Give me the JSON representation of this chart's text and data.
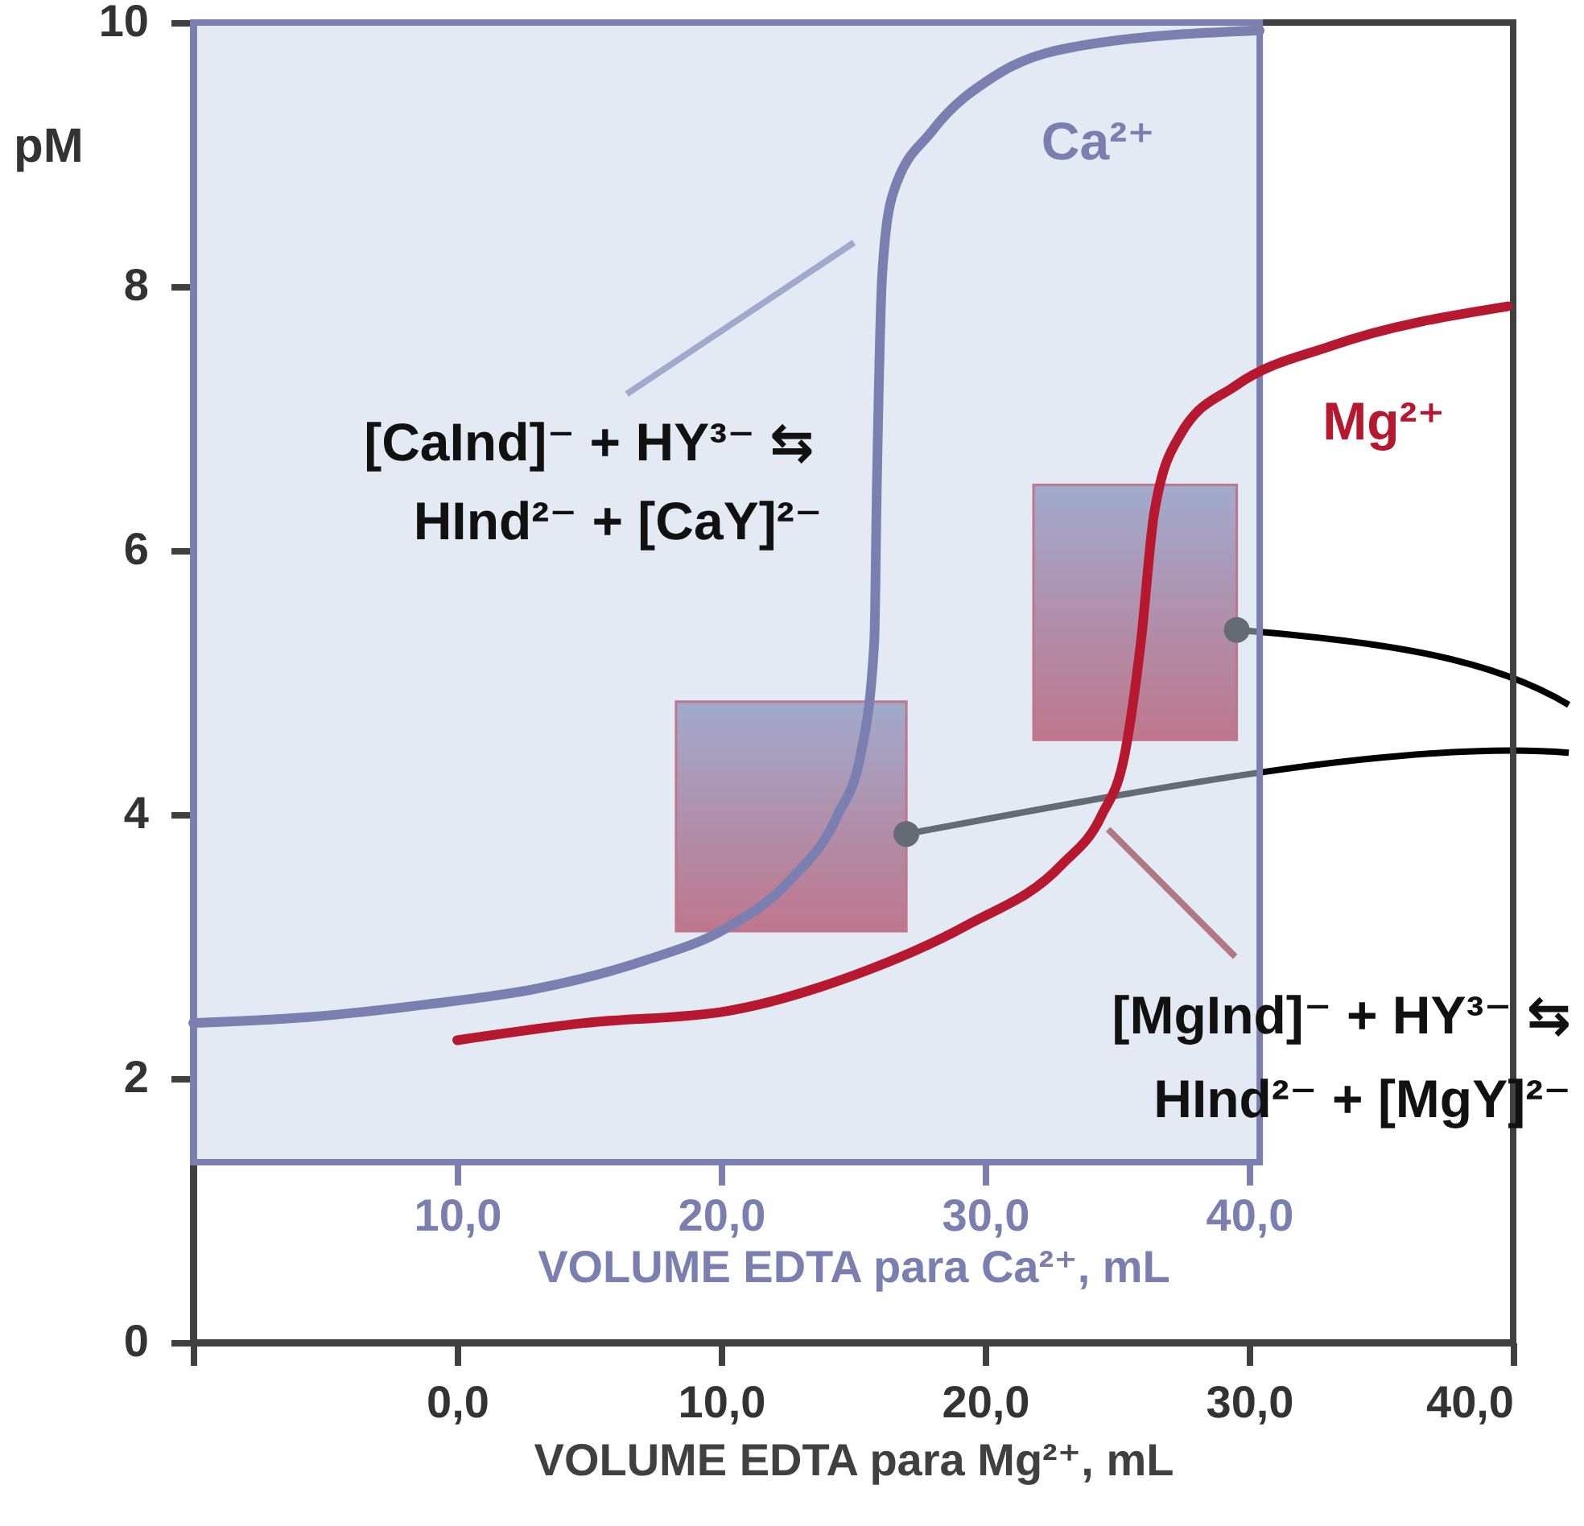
{
  "chart_data": {
    "type": "line",
    "xlabel": "VOLUME EDTA para Mg²⁺, mL",
    "x2label": "VOLUME EDTA para Ca²⁺, mL",
    "ylabel": "pM",
    "xlim": [
      -10,
      40
    ],
    "xticks": [
      {
        "value": -10,
        "label": null
      },
      {
        "value": 0,
        "label": "0,0"
      },
      {
        "value": 10,
        "label": "10,0"
      },
      {
        "value": 20,
        "label": "20,0"
      },
      {
        "value": 30,
        "label": "30,0"
      },
      {
        "value": 40,
        "label": "40,0"
      }
    ],
    "x2lim": [
      0,
      50
    ],
    "x2ticks": [
      {
        "value": 10,
        "label": "10,0"
      },
      {
        "value": 20,
        "label": "20,0"
      },
      {
        "value": 30,
        "label": "30,0"
      },
      {
        "value": 40,
        "label": "40,0"
      }
    ],
    "ylim": [
      0,
      10
    ],
    "yticks": [
      0,
      2,
      4,
      6,
      8,
      10
    ],
    "bands": [
      {
        "axis": "x2",
        "from": 0,
        "to": 40.4,
        "color": "#e3eaf4"
      }
    ],
    "series": [
      {
        "name": "Ca²⁺",
        "color": "#7b7fb0",
        "axis": "x2",
        "x": [
          0,
          4,
          8.8,
          13,
          17.2,
          20.2,
          22.6,
          24.4,
          25.3,
          25.8,
          25.9,
          26.1,
          26.5,
          28,
          30.4,
          34.1,
          40.4
        ],
        "values": [
          2.42,
          2.46,
          2.56,
          2.68,
          2.9,
          3.14,
          3.5,
          3.99,
          4.47,
          5.31,
          6.52,
          8.09,
          8.7,
          9.18,
          9.6,
          9.84,
          9.94
        ]
      },
      {
        "name": "Mg²⁺",
        "color": "#b5182f",
        "x": [
          0,
          4.8,
          10.2,
          15,
          19.3,
          22.9,
          24.4,
          25.3,
          25.9,
          26.4,
          27.4,
          29.5,
          33.1,
          39.8
        ],
        "values": [
          2.29,
          2.42,
          2.51,
          2.78,
          3.16,
          3.62,
          3.99,
          4.47,
          5.31,
          6.28,
          6.88,
          7.25,
          7.55,
          7.85
        ]
      }
    ],
    "annotations": [
      "[CaInd]⁻ + HY³⁻ ⇆",
      "HInd²⁻ + [CaY]²⁻",
      "[MgInd]⁻ + HY³⁻ ⇆",
      "HInd²⁻ + [MgY]²⁻"
    ]
  }
}
